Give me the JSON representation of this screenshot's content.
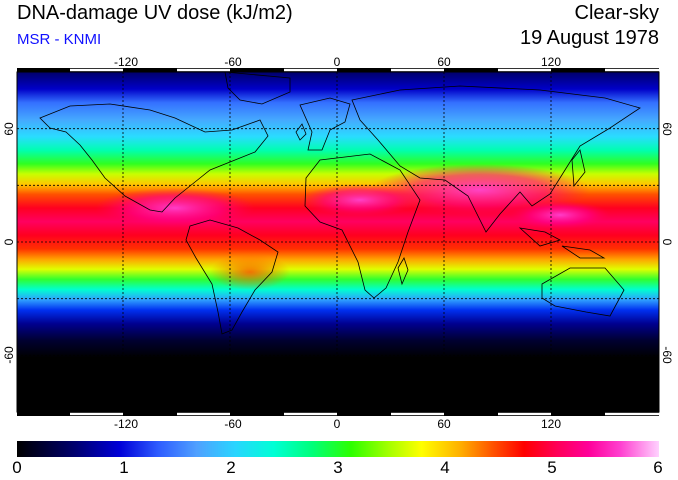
{
  "header": {
    "title": "DNA-damage UV dose (kJ/m2)",
    "source": "MSR - KNMI",
    "sky_condition": "Clear-sky",
    "date": "19 August 1978"
  },
  "map": {
    "projection": "equirectangular",
    "lon_ticks": [
      -120,
      -60,
      0,
      60,
      120
    ],
    "lon_tick_labels": [
      "-120",
      "-60",
      "0",
      "60",
      "120"
    ],
    "lat_ticks": [
      60,
      0,
      -60
    ],
    "lat_tick_labels": [
      "60",
      "0",
      "-60"
    ],
    "gridlines": "dotted"
  },
  "colorbar": {
    "min": 0,
    "max": 6,
    "tick_labels": [
      "0",
      "1",
      "2",
      "3",
      "4",
      "5",
      "6"
    ]
  },
  "colors": {
    "source_text": "#1010ff"
  }
}
